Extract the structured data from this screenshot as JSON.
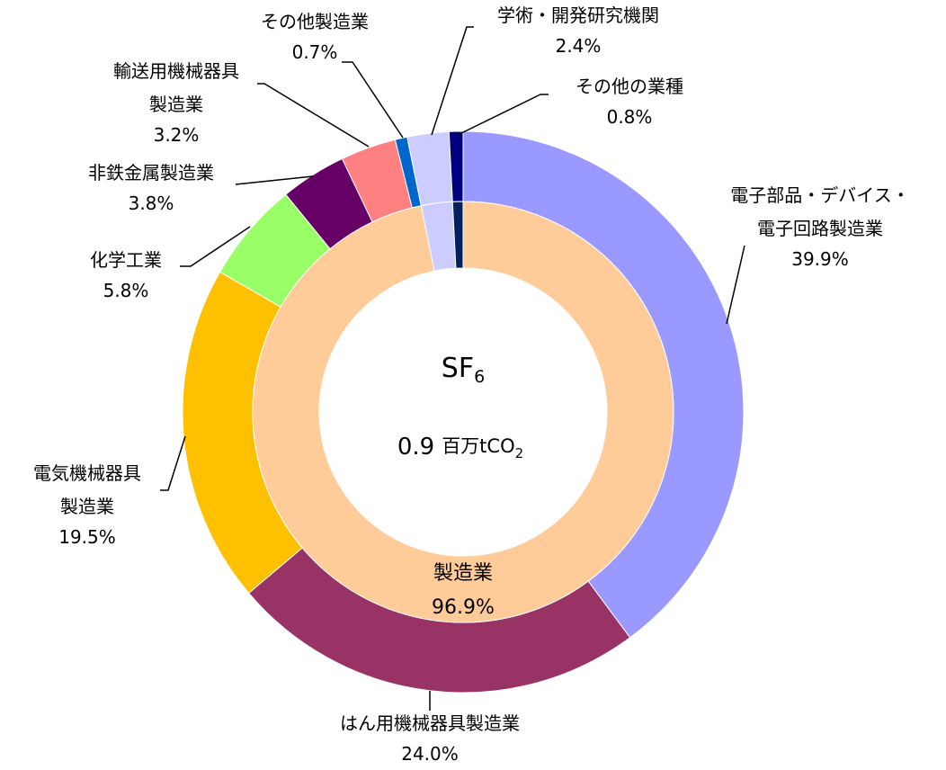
{
  "chart_data": {
    "type": "donut",
    "center": {
      "gas": "SF",
      "gas_sub": "6",
      "total": 0.9,
      "unit": "百万tCO",
      "unit_sub": "2"
    },
    "series": [
      {
        "ring": "outer",
        "categories": [
          [
            "電子部品・デバイス・",
            "電子回路製造業"
          ],
          [
            "はん用機械器具製造業"
          ],
          [
            "電気機械器具",
            "製造業"
          ],
          [
            "化学工業"
          ],
          [
            "非鉄金属製造業"
          ],
          [
            "輸送用機械器具",
            "製造業"
          ],
          [
            "その他製造業"
          ],
          [
            "学術・開発研究機関"
          ],
          [
            "その他の業種"
          ]
        ],
        "values": [
          39.9,
          24.0,
          19.5,
          5.8,
          3.8,
          3.2,
          0.7,
          2.4,
          0.8
        ],
        "value_labels": [
          "39.9%",
          "24.0%",
          "19.5%",
          "5.8%",
          "3.8%",
          "3.2%",
          "0.7%",
          "2.4%",
          "0.8%"
        ],
        "colors": [
          "#9999ff",
          "#993366",
          "#ffc000",
          "#99ff66",
          "#660066",
          "#ff8080",
          "#0066cc",
          "#ccccff",
          "#000080"
        ]
      },
      {
        "ring": "inner",
        "categories": [
          [
            "製造業"
          ],
          null,
          null
        ],
        "values": [
          96.9,
          2.4,
          0.8
        ],
        "value_labels": [
          "96.9%",
          null,
          null
        ],
        "colors": [
          "#ffcc99",
          "#ccccff",
          "#002060"
        ]
      }
    ]
  }
}
